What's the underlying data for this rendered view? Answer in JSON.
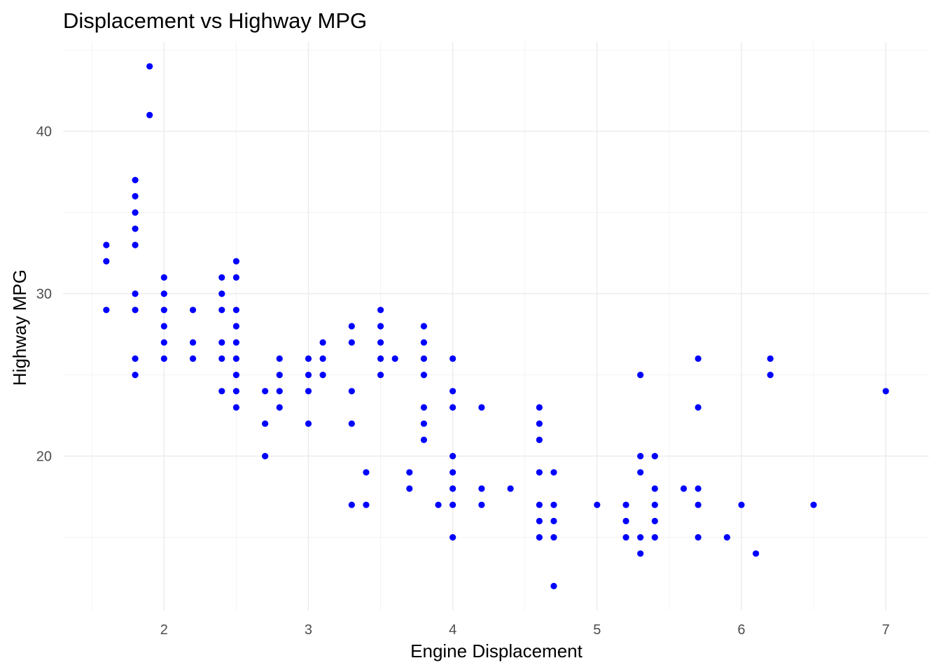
{
  "chart_data": {
    "type": "scatter",
    "title": "Displacement vs Highway MPG",
    "xlabel": "Engine Displacement",
    "ylabel": "Highway MPG",
    "xlim": [
      1.3,
      7.3
    ],
    "ylim": [
      10.5,
      45.5
    ],
    "x_ticks": [
      2,
      3,
      4,
      5,
      6,
      7
    ],
    "x_tick_labels": [
      "2",
      "3",
      "4",
      "5",
      "6",
      "7"
    ],
    "y_ticks": [
      20,
      30,
      40
    ],
    "y_tick_labels": [
      "20",
      "30",
      "40"
    ],
    "grid": true,
    "legend": "none",
    "point_color": "#0000ff",
    "points": [
      {
        "x": 1.6,
        "y": 33
      },
      {
        "x": 1.6,
        "y": 32
      },
      {
        "x": 1.6,
        "y": 29
      },
      {
        "x": 1.8,
        "y": 37
      },
      {
        "x": 1.8,
        "y": 36
      },
      {
        "x": 1.8,
        "y": 35
      },
      {
        "x": 1.8,
        "y": 34
      },
      {
        "x": 1.8,
        "y": 33
      },
      {
        "x": 1.8,
        "y": 30
      },
      {
        "x": 1.8,
        "y": 29
      },
      {
        "x": 1.8,
        "y": 26
      },
      {
        "x": 1.8,
        "y": 25
      },
      {
        "x": 1.9,
        "y": 44
      },
      {
        "x": 1.9,
        "y": 41
      },
      {
        "x": 2.0,
        "y": 31
      },
      {
        "x": 2.0,
        "y": 30
      },
      {
        "x": 2.0,
        "y": 29
      },
      {
        "x": 2.0,
        "y": 28
      },
      {
        "x": 2.0,
        "y": 27
      },
      {
        "x": 2.0,
        "y": 26
      },
      {
        "x": 2.2,
        "y": 29
      },
      {
        "x": 2.2,
        "y": 27
      },
      {
        "x": 2.2,
        "y": 26
      },
      {
        "x": 2.4,
        "y": 31
      },
      {
        "x": 2.4,
        "y": 30
      },
      {
        "x": 2.4,
        "y": 29
      },
      {
        "x": 2.4,
        "y": 27
      },
      {
        "x": 2.4,
        "y": 26
      },
      {
        "x": 2.4,
        "y": 24
      },
      {
        "x": 2.5,
        "y": 32
      },
      {
        "x": 2.5,
        "y": 31
      },
      {
        "x": 2.5,
        "y": 29
      },
      {
        "x": 2.5,
        "y": 28
      },
      {
        "x": 2.5,
        "y": 27
      },
      {
        "x": 2.5,
        "y": 26
      },
      {
        "x": 2.5,
        "y": 25
      },
      {
        "x": 2.5,
        "y": 24
      },
      {
        "x": 2.5,
        "y": 23
      },
      {
        "x": 2.7,
        "y": 24
      },
      {
        "x": 2.7,
        "y": 22
      },
      {
        "x": 2.7,
        "y": 20
      },
      {
        "x": 2.8,
        "y": 26
      },
      {
        "x": 2.8,
        "y": 25
      },
      {
        "x": 2.8,
        "y": 24
      },
      {
        "x": 2.8,
        "y": 23
      },
      {
        "x": 3.0,
        "y": 26
      },
      {
        "x": 3.0,
        "y": 25
      },
      {
        "x": 3.0,
        "y": 24
      },
      {
        "x": 3.0,
        "y": 22
      },
      {
        "x": 3.1,
        "y": 27
      },
      {
        "x": 3.1,
        "y": 26
      },
      {
        "x": 3.1,
        "y": 25
      },
      {
        "x": 3.3,
        "y": 28
      },
      {
        "x": 3.3,
        "y": 27
      },
      {
        "x": 3.3,
        "y": 24
      },
      {
        "x": 3.3,
        "y": 22
      },
      {
        "x": 3.3,
        "y": 17
      },
      {
        "x": 3.4,
        "y": 19
      },
      {
        "x": 3.4,
        "y": 17
      },
      {
        "x": 3.5,
        "y": 29
      },
      {
        "x": 3.5,
        "y": 28
      },
      {
        "x": 3.5,
        "y": 27
      },
      {
        "x": 3.5,
        "y": 26
      },
      {
        "x": 3.5,
        "y": 25
      },
      {
        "x": 3.6,
        "y": 26
      },
      {
        "x": 3.7,
        "y": 19
      },
      {
        "x": 3.7,
        "y": 18
      },
      {
        "x": 3.8,
        "y": 28
      },
      {
        "x": 3.8,
        "y": 27
      },
      {
        "x": 3.8,
        "y": 26
      },
      {
        "x": 3.8,
        "y": 25
      },
      {
        "x": 3.8,
        "y": 23
      },
      {
        "x": 3.8,
        "y": 22
      },
      {
        "x": 3.8,
        "y": 21
      },
      {
        "x": 3.9,
        "y": 17
      },
      {
        "x": 4.0,
        "y": 26
      },
      {
        "x": 4.0,
        "y": 24
      },
      {
        "x": 4.0,
        "y": 23
      },
      {
        "x": 4.0,
        "y": 20
      },
      {
        "x": 4.0,
        "y": 19
      },
      {
        "x": 4.0,
        "y": 18
      },
      {
        "x": 4.0,
        "y": 17
      },
      {
        "x": 4.0,
        "y": 15
      },
      {
        "x": 4.2,
        "y": 23
      },
      {
        "x": 4.2,
        "y": 18
      },
      {
        "x": 4.2,
        "y": 17
      },
      {
        "x": 4.4,
        "y": 18
      },
      {
        "x": 4.6,
        "y": 23
      },
      {
        "x": 4.6,
        "y": 22
      },
      {
        "x": 4.6,
        "y": 21
      },
      {
        "x": 4.6,
        "y": 19
      },
      {
        "x": 4.6,
        "y": 17
      },
      {
        "x": 4.6,
        "y": 16
      },
      {
        "x": 4.6,
        "y": 15
      },
      {
        "x": 4.7,
        "y": 19
      },
      {
        "x": 4.7,
        "y": 17
      },
      {
        "x": 4.7,
        "y": 16
      },
      {
        "x": 4.7,
        "y": 15
      },
      {
        "x": 4.7,
        "y": 12
      },
      {
        "x": 5.0,
        "y": 17
      },
      {
        "x": 5.2,
        "y": 17
      },
      {
        "x": 5.2,
        "y": 16
      },
      {
        "x": 5.2,
        "y": 15
      },
      {
        "x": 5.3,
        "y": 25
      },
      {
        "x": 5.3,
        "y": 20
      },
      {
        "x": 5.3,
        "y": 19
      },
      {
        "x": 5.3,
        "y": 15
      },
      {
        "x": 5.3,
        "y": 14
      },
      {
        "x": 5.4,
        "y": 20
      },
      {
        "x": 5.4,
        "y": 18
      },
      {
        "x": 5.4,
        "y": 17
      },
      {
        "x": 5.4,
        "y": 16
      },
      {
        "x": 5.4,
        "y": 15
      },
      {
        "x": 5.6,
        "y": 18
      },
      {
        "x": 5.7,
        "y": 26
      },
      {
        "x": 5.7,
        "y": 23
      },
      {
        "x": 5.7,
        "y": 18
      },
      {
        "x": 5.7,
        "y": 17
      },
      {
        "x": 5.7,
        "y": 15
      },
      {
        "x": 5.9,
        "y": 15
      },
      {
        "x": 6.0,
        "y": 17
      },
      {
        "x": 6.1,
        "y": 14
      },
      {
        "x": 6.2,
        "y": 26
      },
      {
        "x": 6.2,
        "y": 25
      },
      {
        "x": 6.5,
        "y": 17
      },
      {
        "x": 7.0,
        "y": 24
      }
    ]
  }
}
